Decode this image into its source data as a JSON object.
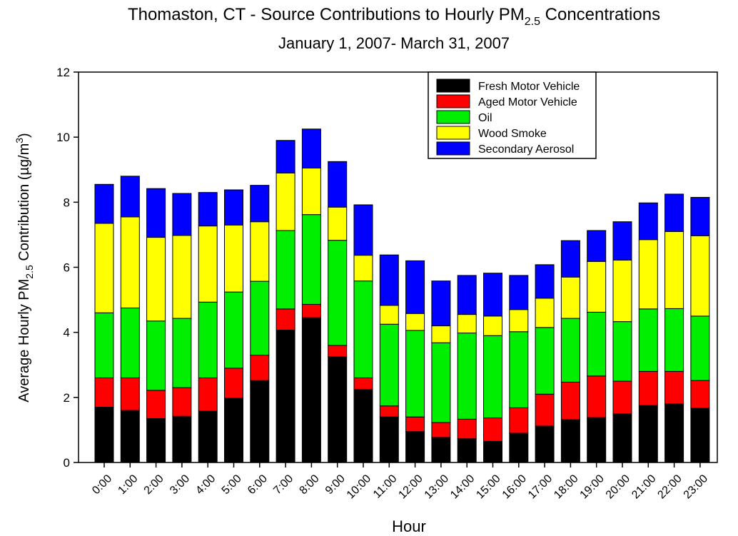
{
  "chart_data": {
    "type": "stacked_bar",
    "title": [
      "Thomaston, CT - Source Contributions to Hourly PM",
      "2.5",
      " Concentrations"
    ],
    "subtitle": "January 1, 2007- March 31, 2007",
    "x_label": "Hour",
    "y_label": [
      "Average Hourly PM",
      "2.5",
      " Contribution (µg/m",
      "3",
      ")"
    ],
    "categories": [
      "0:00",
      "1:00",
      "2:00",
      "3:00",
      "4:00",
      "5:00",
      "6:00",
      "7:00",
      "8:00",
      "9:00",
      "10:00",
      "11:00",
      "12:00",
      "13:00",
      "14:00",
      "15:00",
      "16:00",
      "17:00",
      "18:00",
      "19:00",
      "20:00",
      "21:00",
      "22:00",
      "23:00"
    ],
    "series": [
      {
        "name": "Fresh Motor Vehicle",
        "color": "#000000",
        "values": [
          1.7,
          1.6,
          1.35,
          1.42,
          1.58,
          1.98,
          2.52,
          4.07,
          4.45,
          3.25,
          2.25,
          1.4,
          0.95,
          0.77,
          0.73,
          0.65,
          0.9,
          1.12,
          1.32,
          1.38,
          1.5,
          1.75,
          1.8,
          1.67
        ]
      },
      {
        "name": "Aged Motor Vehicle",
        "color": "#ff0000",
        "values": [
          0.9,
          1.0,
          0.87,
          0.88,
          1.02,
          0.92,
          0.78,
          0.65,
          0.41,
          0.35,
          0.35,
          0.34,
          0.45,
          0.46,
          0.6,
          0.72,
          0.78,
          0.98,
          1.15,
          1.28,
          1.0,
          1.05,
          1.0,
          0.85
        ]
      },
      {
        "name": "Oil",
        "color": "#00ee00",
        "values": [
          2.0,
          2.15,
          2.13,
          2.13,
          2.33,
          2.34,
          2.27,
          2.41,
          2.76,
          3.23,
          2.98,
          2.51,
          2.66,
          2.45,
          2.65,
          2.53,
          2.34,
          2.05,
          1.96,
          1.96,
          1.83,
          1.92,
          1.93,
          1.98
        ]
      },
      {
        "name": "Wood Smoke",
        "color": "#ffff00",
        "values": [
          2.75,
          2.8,
          2.57,
          2.55,
          2.34,
          2.06,
          1.83,
          1.77,
          1.43,
          1.02,
          0.79,
          0.58,
          0.52,
          0.52,
          0.57,
          0.6,
          0.68,
          0.9,
          1.27,
          1.56,
          1.89,
          2.13,
          2.37,
          2.47
        ]
      },
      {
        "name": "Secondary Aerosol",
        "color": "#0000ff",
        "values": [
          1.2,
          1.25,
          1.5,
          1.29,
          1.03,
          1.08,
          1.12,
          1.0,
          1.2,
          1.4,
          1.55,
          1.55,
          1.62,
          1.38,
          1.2,
          1.32,
          1.05,
          1.03,
          1.12,
          0.95,
          1.18,
          1.13,
          1.15,
          1.18
        ]
      }
    ],
    "ylim": [
      0,
      12
    ],
    "yticks": [
      0,
      2,
      4,
      6,
      8,
      10,
      12
    ],
    "legend": "upper right"
  }
}
